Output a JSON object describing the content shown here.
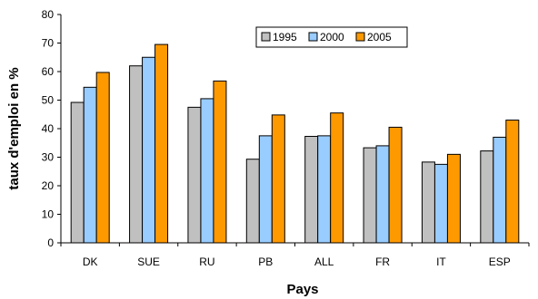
{
  "chart_data": {
    "type": "bar",
    "title": "",
    "xlabel": "Pays",
    "ylabel": "taux d'emploi en %",
    "ylim": [
      0,
      80
    ],
    "yticks": [
      0,
      10,
      20,
      30,
      40,
      50,
      60,
      70,
      80
    ],
    "grid": false,
    "legend_position": "top-right",
    "categories": [
      "DK",
      "SUE",
      "RU",
      "PB",
      "ALL",
      "FR",
      "IT",
      "ESP"
    ],
    "series": [
      {
        "name": "1995",
        "color": "#c0c0c0",
        "values": [
          49.2,
          62.0,
          47.5,
          29.3,
          37.3,
          33.3,
          28.3,
          32.2
        ]
      },
      {
        "name": "2000",
        "color": "#99ccff",
        "values": [
          54.5,
          65.0,
          50.5,
          37.5,
          37.5,
          34.0,
          27.5,
          37.0
        ]
      },
      {
        "name": "2005",
        "color": "#ff9900",
        "values": [
          59.7,
          69.5,
          56.7,
          44.8,
          45.5,
          40.5,
          31.0,
          43.0
        ]
      }
    ]
  }
}
